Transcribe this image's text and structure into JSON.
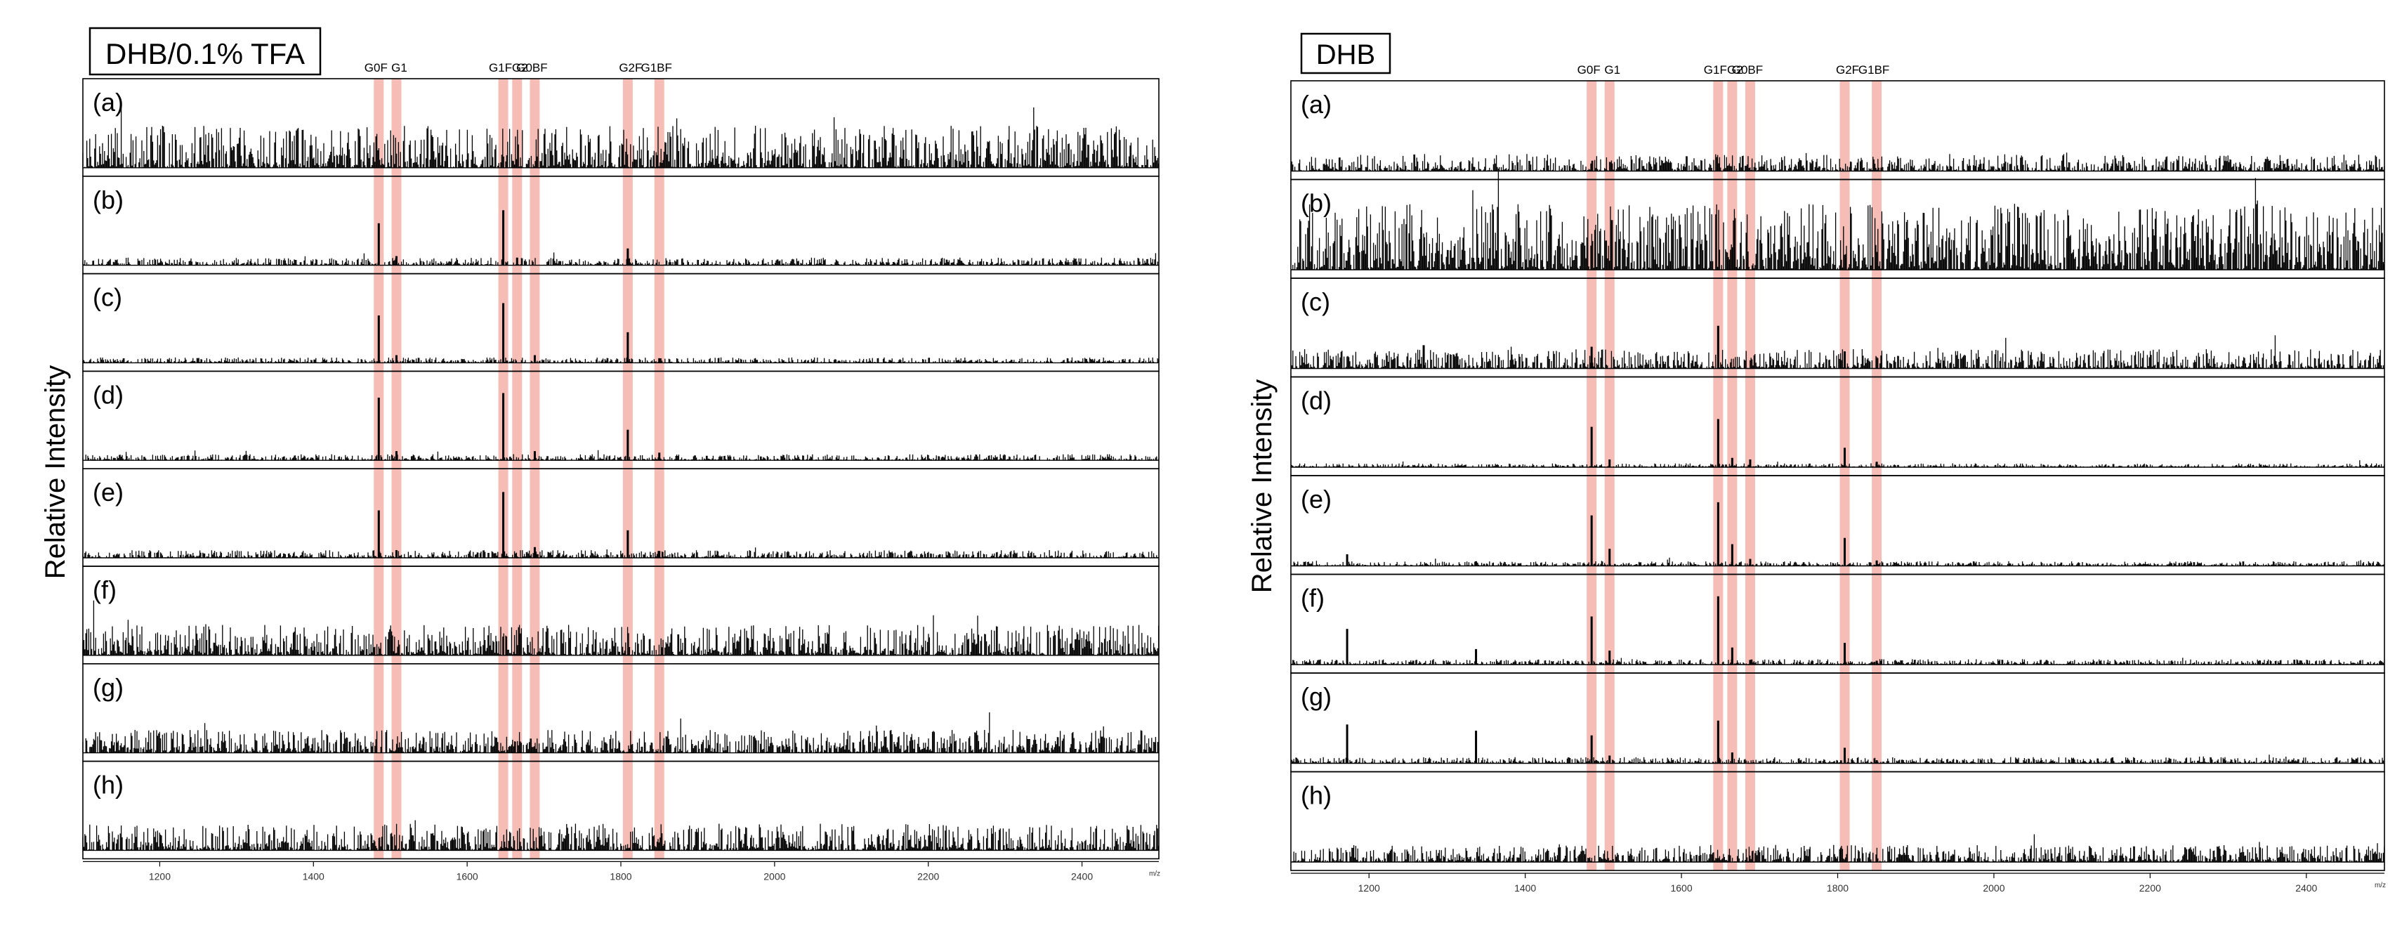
{
  "chart_data": [
    {
      "type": "line",
      "title": "DHB/0.1% TFA",
      "ylabel": "Relative Intensity",
      "x_unit": "m/z",
      "xlim": [
        1100,
        2500
      ],
      "x_ticks": [
        "1200",
        "1400",
        "1600",
        "1800",
        "2000",
        "2200",
        "2400"
      ],
      "peak_labels": [
        {
          "label": "G0F",
          "mz": 1485
        },
        {
          "label": "G1",
          "mz": 1508
        },
        {
          "label": "G1F",
          "mz": 1647
        },
        {
          "label": "G2",
          "mz": 1665
        },
        {
          "label": "G0BF",
          "mz": 1688
        },
        {
          "label": "G2F",
          "mz": 1809
        },
        {
          "label": "G1BF",
          "mz": 1850
        }
      ],
      "spectra": [
        {
          "label": "(a)",
          "noise": 0.55,
          "peaks": []
        },
        {
          "label": "(b)",
          "noise": 0.1,
          "peaks": [
            [
              1485,
              0.55
            ],
            [
              1508,
              0.12
            ],
            [
              1647,
              0.72
            ],
            [
              1665,
              0.1
            ],
            [
              1809,
              0.22
            ]
          ]
        },
        {
          "label": "(c)",
          "noise": 0.07,
          "peaks": [
            [
              1485,
              0.62
            ],
            [
              1508,
              0.1
            ],
            [
              1647,
              0.78
            ],
            [
              1688,
              0.1
            ],
            [
              1809,
              0.4
            ],
            [
              1850,
              0.06
            ]
          ]
        },
        {
          "label": "(d)",
          "noise": 0.08,
          "peaks": [
            [
              1485,
              0.82
            ],
            [
              1508,
              0.12
            ],
            [
              1647,
              0.88
            ],
            [
              1688,
              0.12
            ],
            [
              1809,
              0.4
            ],
            [
              1850,
              0.1
            ]
          ]
        },
        {
          "label": "(e)",
          "noise": 0.1,
          "peaks": [
            [
              1485,
              0.62
            ],
            [
              1508,
              0.1
            ],
            [
              1647,
              0.86
            ],
            [
              1688,
              0.14
            ],
            [
              1809,
              0.36
            ],
            [
              1850,
              0.09
            ]
          ]
        },
        {
          "label": "(f)",
          "noise": 0.4,
          "peaks": []
        },
        {
          "label": "(g)",
          "noise": 0.3,
          "peaks": []
        },
        {
          "label": "(h)",
          "noise": 0.35,
          "peaks": []
        }
      ]
    },
    {
      "type": "line",
      "title": "DHB",
      "ylabel": "Relative Intensity",
      "x_unit": "m/z",
      "xlim": [
        1100,
        2500
      ],
      "x_ticks": [
        "1200",
        "1400",
        "1600",
        "1800",
        "2000",
        "2200",
        "2400"
      ],
      "peak_labels": [
        {
          "label": "G0F",
          "mz": 1485
        },
        {
          "label": "G1",
          "mz": 1508
        },
        {
          "label": "G1F",
          "mz": 1647
        },
        {
          "label": "G2",
          "mz": 1665
        },
        {
          "label": "G0BF",
          "mz": 1688
        },
        {
          "label": "G2F",
          "mz": 1809
        },
        {
          "label": "G1BF",
          "mz": 1850
        }
      ],
      "spectra": [
        {
          "label": "(a)",
          "noise": 0.22,
          "peaks": []
        },
        {
          "label": "(b)",
          "noise": 0.85,
          "peaks": []
        },
        {
          "label": "(c)",
          "noise": 0.25,
          "peaks": [
            [
              1270,
              0.3
            ],
            [
              1485,
              0.28
            ],
            [
              1647,
              0.55
            ],
            [
              1809,
              0.22
            ]
          ]
        },
        {
          "label": "(d)",
          "noise": 0.05,
          "peaks": [
            [
              1485,
              0.52
            ],
            [
              1508,
              0.1
            ],
            [
              1647,
              0.62
            ],
            [
              1665,
              0.12
            ],
            [
              1688,
              0.1
            ],
            [
              1809,
              0.25
            ],
            [
              1850,
              0.07
            ]
          ]
        },
        {
          "label": "(e)",
          "noise": 0.06,
          "peaks": [
            [
              1172,
              0.15
            ],
            [
              1337,
              0.06
            ],
            [
              1485,
              0.65
            ],
            [
              1508,
              0.22
            ],
            [
              1647,
              0.82
            ],
            [
              1665,
              0.28
            ],
            [
              1688,
              0.09
            ],
            [
              1809,
              0.36
            ],
            [
              1850,
              0.07
            ]
          ]
        },
        {
          "label": "(f)",
          "noise": 0.07,
          "peaks": [
            [
              1172,
              0.46
            ],
            [
              1337,
              0.2
            ],
            [
              1485,
              0.62
            ],
            [
              1508,
              0.18
            ],
            [
              1647,
              0.88
            ],
            [
              1665,
              0.22
            ],
            [
              1688,
              0.06
            ],
            [
              1809,
              0.28
            ],
            [
              1850,
              0.05
            ]
          ]
        },
        {
          "label": "(g)",
          "noise": 0.08,
          "peaks": [
            [
              1172,
              0.5
            ],
            [
              1337,
              0.42
            ],
            [
              1485,
              0.36
            ],
            [
              1508,
              0.1
            ],
            [
              1647,
              0.55
            ],
            [
              1665,
              0.14
            ],
            [
              1809,
              0.2
            ],
            [
              1850,
              0.04
            ]
          ]
        },
        {
          "label": "(h)",
          "noise": 0.22,
          "peaks": []
        }
      ]
    }
  ],
  "colors": {
    "highlight": "#f4b6ad",
    "trace": "#000000",
    "frame": "#000000"
  }
}
